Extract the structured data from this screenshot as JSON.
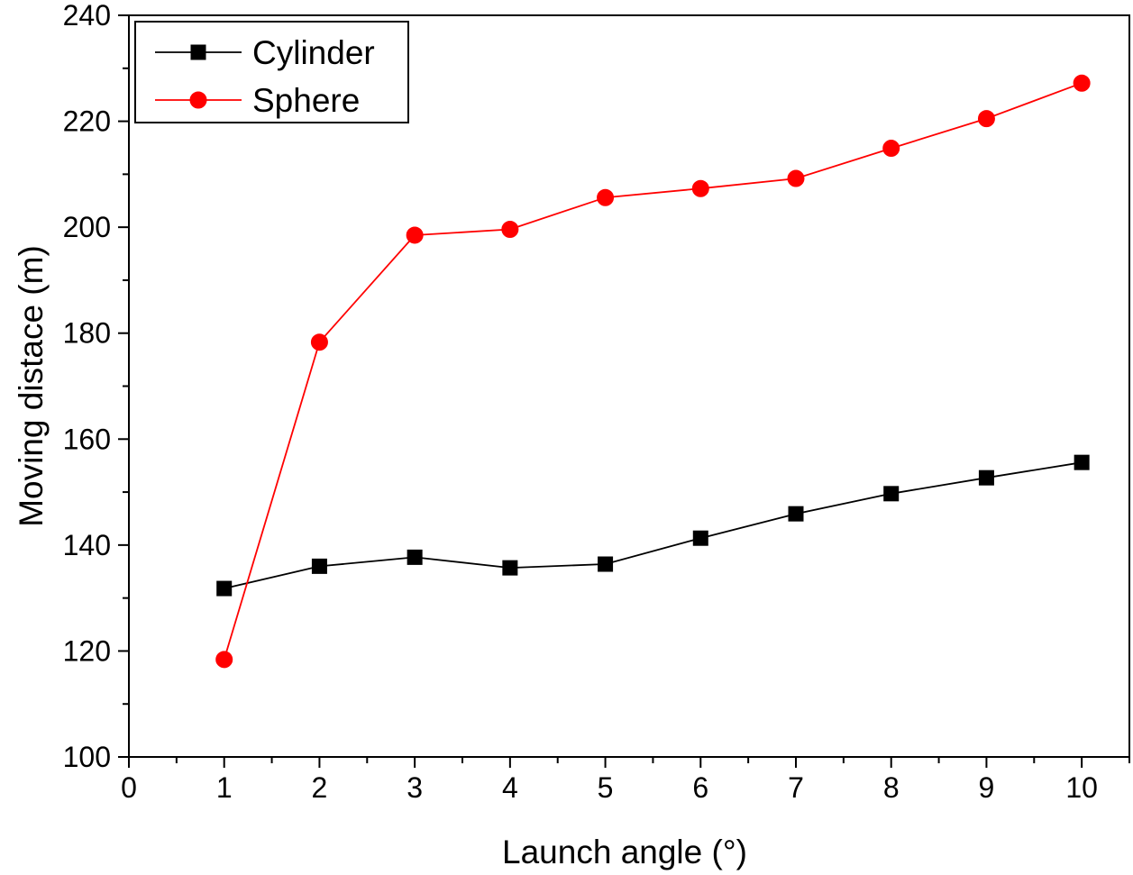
{
  "chart_data": {
    "type": "line",
    "title": "",
    "xlabel": "Launch angle (°)",
    "ylabel": "Moving distace (m)",
    "xlim": [
      0,
      10.5
    ],
    "ylim": [
      100,
      240
    ],
    "xticks": [
      0,
      1,
      2,
      3,
      4,
      5,
      6,
      7,
      8,
      9,
      10
    ],
    "yticks": [
      100,
      120,
      140,
      160,
      180,
      200,
      220,
      240
    ],
    "grid": false,
    "legend_position": "top-left",
    "x": [
      1,
      2,
      3,
      4,
      5,
      6,
      7,
      8,
      9,
      10
    ],
    "series": [
      {
        "name": "Cylinder",
        "color": "#000000",
        "marker": "square",
        "values": [
          131.8,
          136.0,
          137.7,
          135.7,
          136.4,
          141.3,
          145.9,
          149.7,
          152.7,
          155.6
        ]
      },
      {
        "name": "Sphere",
        "color": "#ff0000",
        "marker": "circle",
        "values": [
          118.4,
          178.3,
          198.5,
          199.6,
          205.6,
          207.3,
          209.2,
          214.9,
          220.5,
          227.2
        ]
      }
    ]
  }
}
